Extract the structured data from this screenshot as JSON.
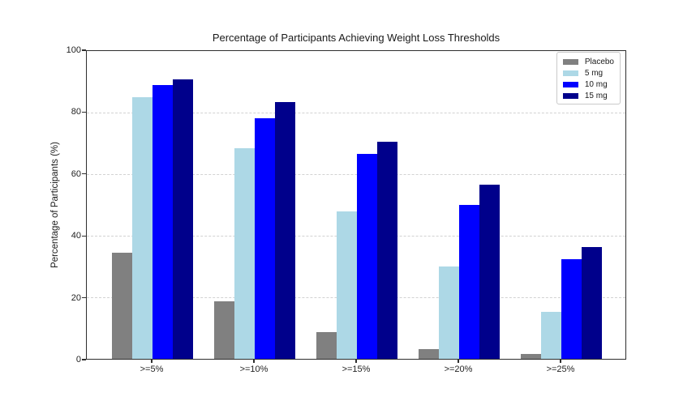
{
  "chart_data": {
    "type": "bar",
    "title": "Percentage of Participants Achieving Weight Loss Thresholds",
    "xlabel": "",
    "ylabel": "Percentage of Participants (%)",
    "ylim": [
      0,
      100
    ],
    "yticks": [
      0,
      20,
      40,
      60,
      80,
      100
    ],
    "grid": "horizontal dashed gridlines at y-ticks",
    "legend_position": "upper-right inside plot",
    "categories": [
      ">=5%",
      ">=10%",
      ">=15%",
      ">=20%",
      ">=25%"
    ],
    "series": [
      {
        "name": "Placebo",
        "color": "#808080",
        "values": [
          34.5,
          18.8,
          8.8,
          3.1,
          1.5
        ]
      },
      {
        "name": "5 mg",
        "color": "#ADD8E6",
        "values": [
          85.1,
          68.5,
          48.0,
          30.0,
          15.3
        ]
      },
      {
        "name": "10 mg",
        "color": "#0000FF",
        "values": [
          88.9,
          78.1,
          66.6,
          50.1,
          32.3
        ]
      },
      {
        "name": "15 mg",
        "color": "#00008B",
        "values": [
          90.9,
          83.5,
          70.6,
          56.7,
          36.2
        ]
      }
    ],
    "colors": {
      "background": "#ffffff",
      "spine": "#2e2e2e",
      "gridline": "#d2d2d2",
      "text": "#1a1a1a"
    }
  }
}
